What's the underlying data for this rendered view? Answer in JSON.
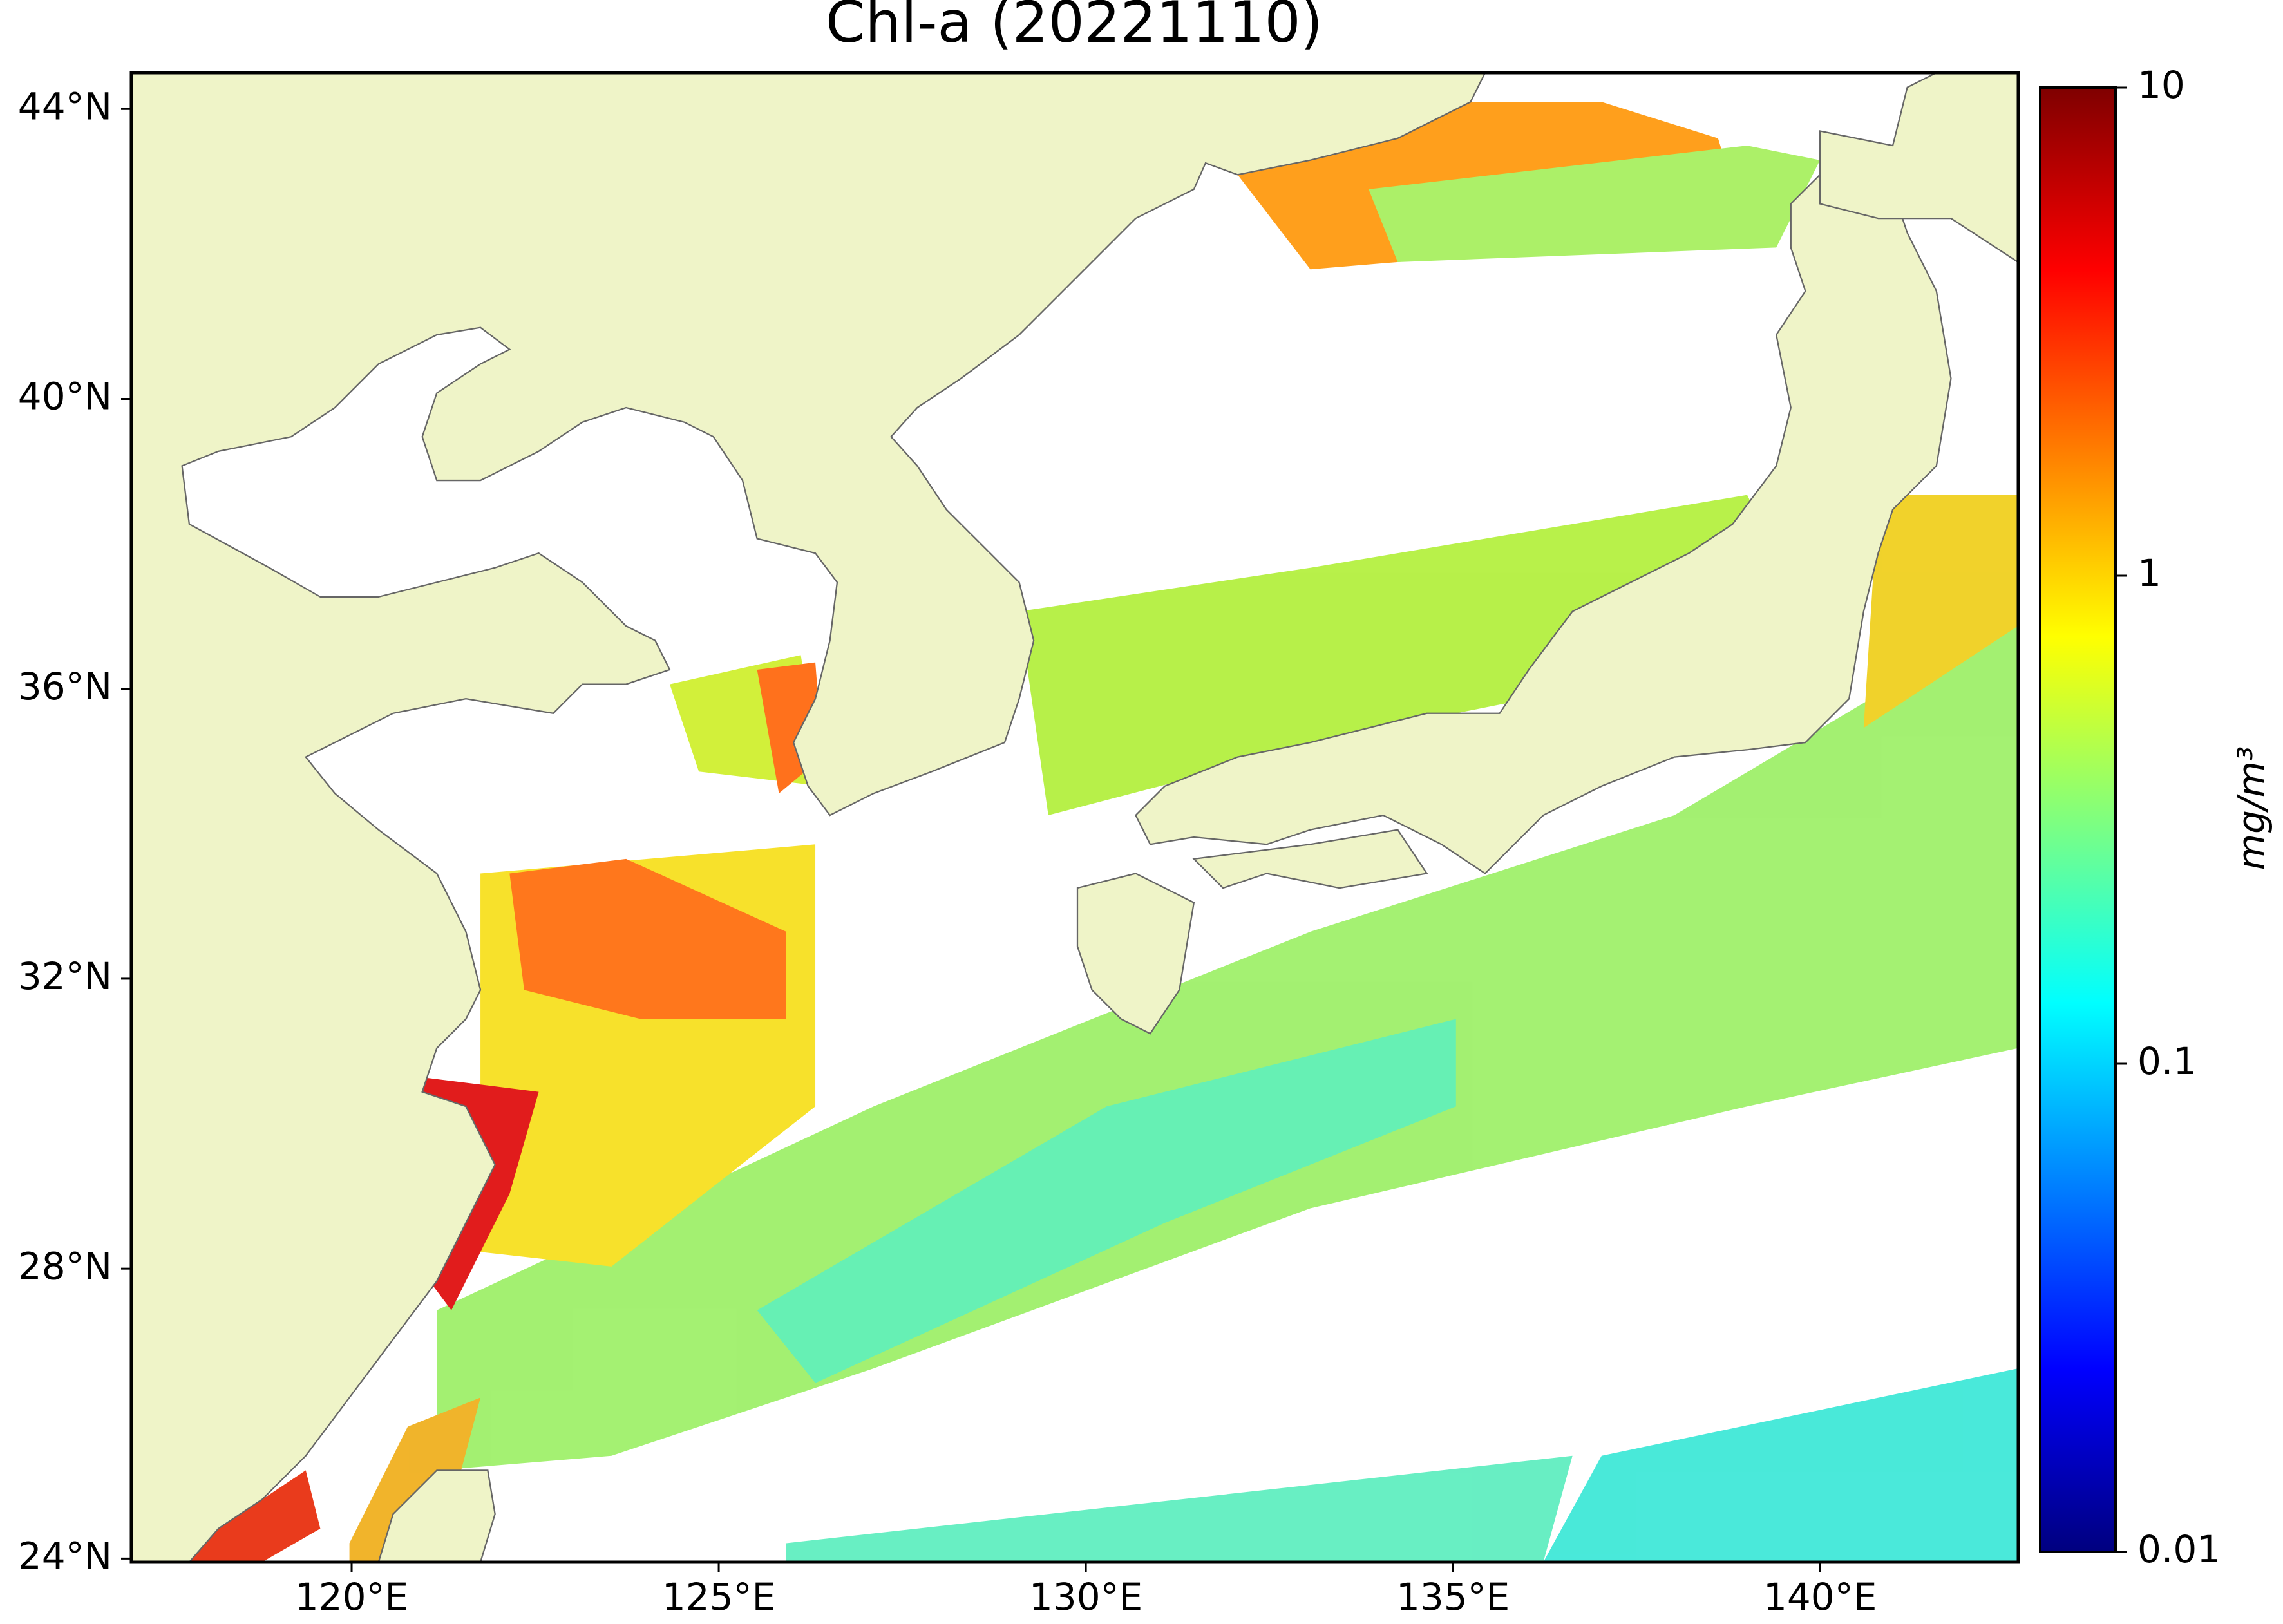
{
  "map": {
    "title": "Chl-a (20221110)",
    "xlim": [
      117.0,
      142.7
    ],
    "ylim": [
      23.95,
      44.5
    ],
    "xticks": [
      {
        "value": 120,
        "label": "120°E"
      },
      {
        "value": 125,
        "label": "125°E"
      },
      {
        "value": 130,
        "label": "130°E"
      },
      {
        "value": 135,
        "label": "135°E"
      },
      {
        "value": 140,
        "label": "140°E"
      }
    ],
    "yticks": [
      {
        "value": 24,
        "label": "24°N"
      },
      {
        "value": 28,
        "label": "28°N"
      },
      {
        "value": 32,
        "label": "32°N"
      },
      {
        "value": 36,
        "label": "36°N"
      },
      {
        "value": 40,
        "label": "40°N"
      },
      {
        "value": 44,
        "label": "44°N"
      }
    ],
    "colorbar": {
      "label": "mg/m³",
      "scale": "log",
      "lim": [
        0.01,
        10
      ],
      "ticks": [
        10,
        1,
        0.1,
        0.01
      ]
    }
  }
}
